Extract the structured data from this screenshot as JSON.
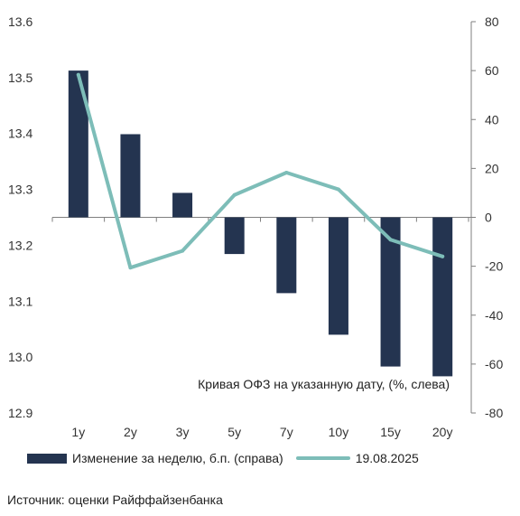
{
  "chart_data": {
    "type": "bar+line",
    "categories": [
      "1y",
      "2y",
      "3y",
      "5y",
      "7y",
      "10y",
      "15y",
      "20y"
    ],
    "series": [
      {
        "name": "Изменение за неделю, б.п. (справа)",
        "type": "bar",
        "axis": "right",
        "color": "#243450",
        "values": [
          60,
          34,
          10,
          -15,
          -31,
          -48,
          -61,
          -65
        ]
      },
      {
        "name": "19.08.2025",
        "type": "line",
        "axis": "left",
        "color": "#7dbdb8",
        "values": [
          13.505,
          13.16,
          13.19,
          13.29,
          13.33,
          13.3,
          13.21,
          13.18
        ]
      }
    ],
    "left_axis": {
      "ylim": [
        12.9,
        13.6
      ],
      "ticks": [
        "12.9",
        "13.0",
        "13.1",
        "13.2",
        "13.3",
        "13.4",
        "13.5",
        "13.6"
      ]
    },
    "right_axis": {
      "ylim": [
        -80,
        80
      ],
      "ticks": [
        "-80",
        "-60",
        "-40",
        "-20",
        "0",
        "20",
        "40",
        "60",
        "80"
      ]
    },
    "annotation": "Кривая ОФЗ на указанную дату, (%, слева)",
    "grid": false,
    "legend_position": "bottom"
  },
  "legend": {
    "bar_label": "Изменение за неделю, б.п. (справа)",
    "line_label": "19.08.2025"
  },
  "source": "Источник: оценки Райффайзенбанка"
}
